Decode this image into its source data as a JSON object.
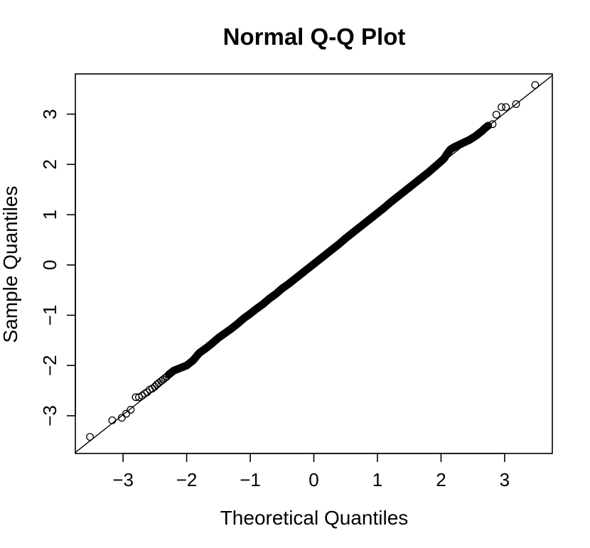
{
  "chart_data": {
    "type": "scatter",
    "title": "Normal Q-Q Plot",
    "xlabel": "Theoretical Quantiles",
    "ylabel": "Sample Quantiles",
    "xlim": [
      -3.75,
      3.75
    ],
    "ylim": [
      -3.75,
      3.8
    ],
    "x_ticks": [
      -3,
      -2,
      -1,
      0,
      1,
      2,
      3
    ],
    "x_tick_labels": [
      "−3",
      "−2",
      "−1",
      "0",
      "1",
      "2",
      "3"
    ],
    "y_ticks": [
      -3,
      -2,
      -1,
      0,
      1,
      2,
      3
    ],
    "y_tick_labels": [
      "−3",
      "−2",
      "−1",
      "0",
      "1",
      "2",
      "3"
    ],
    "grid": false,
    "legend": "none",
    "reference_line": {
      "intercept": 0.02,
      "slope": 1.0
    },
    "points": [
      [
        -3.52,
        -3.42
      ],
      [
        -3.17,
        -3.09
      ],
      [
        -3.02,
        -3.04
      ],
      [
        -2.95,
        -2.96
      ],
      [
        -2.88,
        -2.88
      ],
      [
        -2.8,
        -2.63
      ],
      [
        -2.75,
        -2.63
      ],
      [
        -2.7,
        -2.6
      ],
      [
        -2.66,
        -2.56
      ],
      [
        -2.62,
        -2.53
      ],
      [
        -2.58,
        -2.48
      ],
      [
        -2.54,
        -2.46
      ],
      [
        -2.5,
        -2.42
      ],
      [
        -2.47,
        -2.38
      ],
      [
        -2.44,
        -2.35
      ],
      [
        -2.4,
        -2.31
      ],
      [
        -2.37,
        -2.28
      ],
      [
        -2.34,
        -2.25
      ],
      [
        -2.31,
        -2.22
      ],
      [
        -2.28,
        -2.18
      ],
      [
        -2.25,
        -2.15
      ],
      [
        -2.2,
        -2.1
      ],
      [
        -2.1,
        -2.05
      ],
      [
        -2.0,
        -2.0
      ],
      [
        -1.9,
        -1.9
      ],
      [
        -1.8,
        -1.75
      ],
      [
        -1.7,
        -1.66
      ],
      [
        -1.6,
        -1.56
      ],
      [
        -1.5,
        -1.45
      ],
      [
        -1.4,
        -1.36
      ],
      [
        -1.3,
        -1.27
      ],
      [
        -1.2,
        -1.17
      ],
      [
        -1.1,
        -1.06
      ],
      [
        -1.0,
        -0.97
      ],
      [
        -0.9,
        -0.87
      ],
      [
        -0.8,
        -0.78
      ],
      [
        -0.7,
        -0.67
      ],
      [
        -0.6,
        -0.58
      ],
      [
        -0.5,
        -0.47
      ],
      [
        -0.4,
        -0.38
      ],
      [
        -0.3,
        -0.28
      ],
      [
        -0.2,
        -0.18
      ],
      [
        -0.1,
        -0.08
      ],
      [
        0.0,
        0.02
      ],
      [
        0.1,
        0.12
      ],
      [
        0.2,
        0.22
      ],
      [
        0.3,
        0.32
      ],
      [
        0.4,
        0.42
      ],
      [
        0.5,
        0.53
      ],
      [
        0.6,
        0.63
      ],
      [
        0.7,
        0.73
      ],
      [
        0.8,
        0.83
      ],
      [
        0.9,
        0.93
      ],
      [
        1.0,
        1.03
      ],
      [
        1.1,
        1.13
      ],
      [
        1.2,
        1.24
      ],
      [
        1.3,
        1.34
      ],
      [
        1.4,
        1.44
      ],
      [
        1.5,
        1.54
      ],
      [
        1.6,
        1.64
      ],
      [
        1.7,
        1.74
      ],
      [
        1.8,
        1.84
      ],
      [
        1.9,
        1.95
      ],
      [
        2.0,
        2.06
      ],
      [
        2.05,
        2.12
      ],
      [
        2.1,
        2.22
      ],
      [
        2.15,
        2.3
      ],
      [
        2.2,
        2.34
      ],
      [
        2.25,
        2.37
      ],
      [
        2.3,
        2.4
      ],
      [
        2.35,
        2.43
      ],
      [
        2.4,
        2.46
      ],
      [
        2.45,
        2.49
      ],
      [
        2.5,
        2.53
      ],
      [
        2.55,
        2.57
      ],
      [
        2.6,
        2.62
      ],
      [
        2.65,
        2.67
      ],
      [
        2.69,
        2.72
      ],
      [
        2.74,
        2.77
      ],
      [
        2.81,
        2.8
      ],
      [
        2.87,
        2.99
      ],
      [
        2.95,
        3.14
      ],
      [
        3.02,
        3.14
      ],
      [
        3.18,
        3.2
      ],
      [
        3.48,
        3.58
      ]
    ]
  }
}
